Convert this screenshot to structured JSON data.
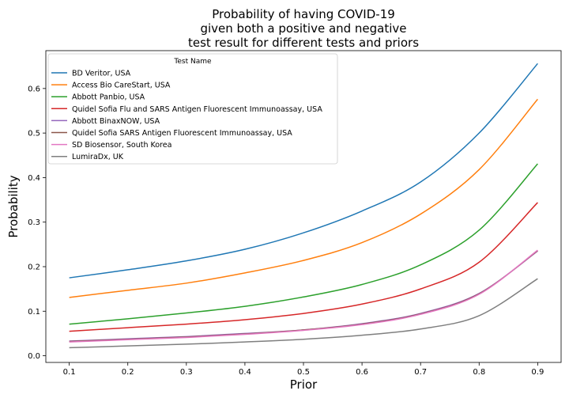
{
  "chart_data": {
    "type": "line",
    "title": [
      "Probability of having COVID-19",
      "given both a positive and negative",
      "test result for different tests and priors"
    ],
    "xlabel": "Prior",
    "ylabel": "Probability",
    "xlim": [
      0.06,
      0.94
    ],
    "ylim": [
      -0.015,
      0.685
    ],
    "xticks": [
      0.1,
      0.2,
      0.3,
      0.4,
      0.5,
      0.6,
      0.7,
      0.8,
      0.9
    ],
    "xtick_labels": [
      "0.1",
      "0.2",
      "0.3",
      "0.4",
      "0.5",
      "0.6",
      "0.7",
      "0.8",
      "0.9"
    ],
    "yticks": [
      0.0,
      0.1,
      0.2,
      0.3,
      0.4,
      0.5,
      0.6
    ],
    "ytick_labels": [
      "0.0",
      "0.1",
      "0.2",
      "0.3",
      "0.4",
      "0.5",
      "0.6"
    ],
    "grid": false,
    "legend": {
      "title": "Test Name",
      "placement": "top-left"
    },
    "x": [
      0.1,
      0.2,
      0.3,
      0.4,
      0.5,
      0.6,
      0.7,
      0.8,
      0.9
    ],
    "series": [
      {
        "name": "BD Veritor, USA",
        "color": "#1f77b4",
        "values": [
          0.175,
          0.193,
          0.213,
          0.239,
          0.276,
          0.325,
          0.39,
          0.5,
          0.656
        ]
      },
      {
        "name": "Access Bio CareStart, USA",
        "color": "#ff7f0e",
        "values": [
          0.131,
          0.147,
          0.163,
          0.186,
          0.214,
          0.254,
          0.318,
          0.418,
          0.576
        ]
      },
      {
        "name": "Abbott Panbio, USA",
        "color": "#2ca02c",
        "values": [
          0.071,
          0.083,
          0.096,
          0.111,
          0.132,
          0.16,
          0.204,
          0.282,
          0.431
        ]
      },
      {
        "name": "Quidel Sofia Flu and SARS Antigen Fluorescent Immunoassay, USA",
        "color": "#d62728",
        "values": [
          0.055,
          0.063,
          0.071,
          0.081,
          0.095,
          0.116,
          0.15,
          0.21,
          0.344
        ]
      },
      {
        "name": "Abbott BinaxNOW, USA",
        "color": "#9467bd",
        "values": [
          0.033,
          0.038,
          0.043,
          0.05,
          0.058,
          0.072,
          0.095,
          0.14,
          0.235
        ]
      },
      {
        "name": "Quidel Sofia SARS Antigen Fluorescent Immunoassay, USA",
        "color": "#8c564b",
        "values": [
          0.032,
          0.037,
          0.042,
          0.049,
          0.058,
          0.071,
          0.094,
          0.139,
          0.236
        ]
      },
      {
        "name": "SD Biosensor, South Korea",
        "color": "#e377c2",
        "values": [
          0.031,
          0.036,
          0.041,
          0.048,
          0.057,
          0.07,
          0.093,
          0.138,
          0.237
        ]
      },
      {
        "name": "LumiraDx, UK",
        "color": "#7f7f7f",
        "values": [
          0.018,
          0.022,
          0.026,
          0.031,
          0.037,
          0.046,
          0.06,
          0.09,
          0.173
        ]
      }
    ]
  }
}
